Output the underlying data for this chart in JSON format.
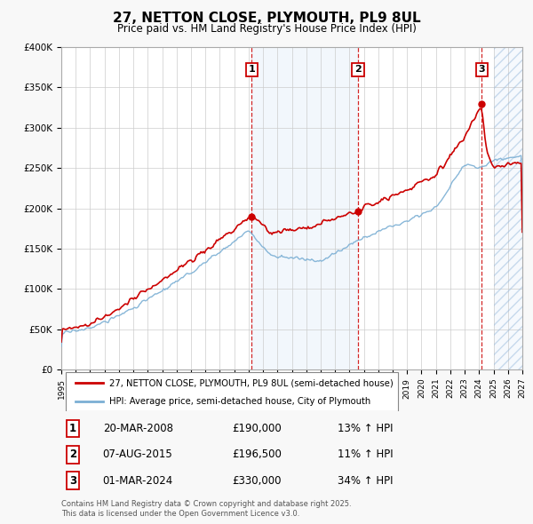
{
  "title": "27, NETTON CLOSE, PLYMOUTH, PL9 8UL",
  "subtitle": "Price paid vs. HM Land Registry's House Price Index (HPI)",
  "red_label": "27, NETTON CLOSE, PLYMOUTH, PL9 8UL (semi-detached house)",
  "blue_label": "HPI: Average price, semi-detached house, City of Plymouth",
  "footer": "Contains HM Land Registry data © Crown copyright and database right 2025.\nThis data is licensed under the Open Government Licence v3.0.",
  "sales": [
    {
      "num": 1,
      "date": "20-MAR-2008",
      "price": 190000,
      "hpi_pct": "13% ↑ HPI",
      "x_year": 2008.22
    },
    {
      "num": 2,
      "date": "07-AUG-2015",
      "price": 196500,
      "hpi_pct": "11% ↑ HPI",
      "x_year": 2015.6
    },
    {
      "num": 3,
      "date": "01-MAR-2024",
      "price": 330000,
      "hpi_pct": "34% ↑ HPI",
      "x_year": 2024.17
    }
  ],
  "ylim": [
    0,
    400000
  ],
  "xlim_start": 1995,
  "xlim_end": 2027,
  "hatch_start_x": 2025.0,
  "hatch_end_x": 2027,
  "background_color": "#f8f8f8",
  "plot_bg_color": "#ffffff",
  "grid_color": "#cccccc",
  "red_color": "#cc0000",
  "blue_color": "#7bafd4",
  "shaded_blue_between": "#ddeeff",
  "dashed_red": "#cc0000"
}
